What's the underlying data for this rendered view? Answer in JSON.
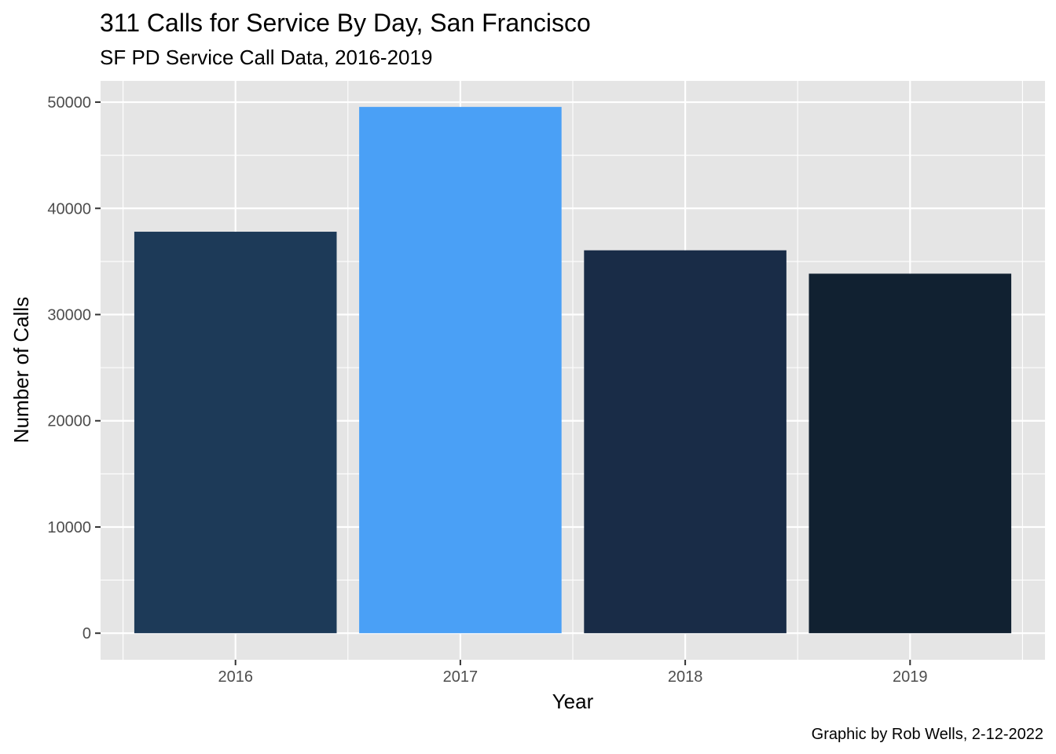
{
  "chart_data": {
    "type": "bar",
    "title": "311 Calls for Service By Day, San Francisco",
    "subtitle": "SF PD Service Call Data, 2016-2019",
    "caption": "Graphic by Rob Wells, 2-12-2022",
    "xlabel": "Year",
    "ylabel": "Number of Calls",
    "categories": [
      "2016",
      "2017",
      "2018",
      "2019"
    ],
    "values": [
      37800,
      49550,
      36050,
      33850
    ],
    "bar_colors": [
      "#1d3a58",
      "#4aa0f6",
      "#192c47",
      "#112131"
    ],
    "ylim": [
      -2500,
      52000
    ],
    "yticks": [
      0,
      10000,
      20000,
      30000,
      40000,
      50000
    ],
    "ytick_labels": [
      "0",
      "10000",
      "20000",
      "30000",
      "40000",
      "50000"
    ],
    "grid": true,
    "legend": "none",
    "panel_background": "#e5e5e5",
    "grid_color": "#ffffff"
  }
}
